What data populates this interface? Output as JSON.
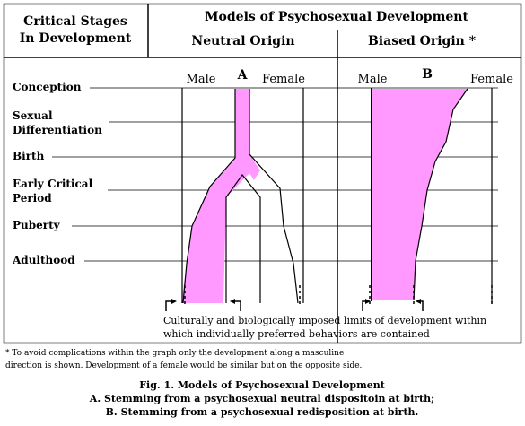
{
  "header": {
    "left_line1": "Critical Stages",
    "left_line2": "In Development",
    "title": "Models of Psychosexual Development",
    "col_neutral": "Neutral Origin",
    "col_biased": "Biased Origin *"
  },
  "panels": {
    "a_label": "A",
    "b_label": "B",
    "male": "Male",
    "female": "Female"
  },
  "stages": {
    "conception": "Conception",
    "sexual_1": "Sexual",
    "sexual_2": "Differentiation",
    "birth": "Birth",
    "early_1": "Early Critical",
    "early_2": "Period",
    "puberty": "Puberty",
    "adulthood": "Adulthood"
  },
  "limits_caption": {
    "line1": "Culturally and biologically imposed limits of development within",
    "line2": "which individually preferred behaviors are contained"
  },
  "footnote": {
    "line1": "* To avoid complications within the graph only the development along a masculine",
    "line2": "direction is shown. Development of a female would be similar but on the opposite side."
  },
  "figure_caption": {
    "title": "Fig. 1. Models of Psychosexual Development",
    "a": "A. Stemming from a psychosexual neutral dispositoin at birth;",
    "b": "B. Stemming from a psychosexual redisposition at birth."
  },
  "colors": {
    "fill": "#ff99ff",
    "line": "#000000"
  }
}
